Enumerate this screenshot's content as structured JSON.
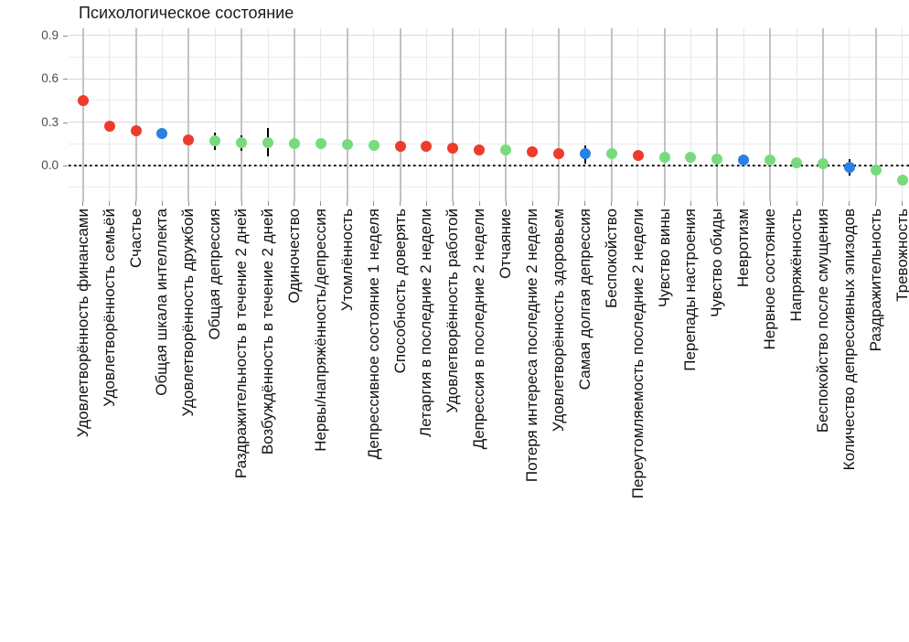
{
  "title": "Психологическое состояние",
  "palette": {
    "red": "#ee3b2c",
    "green": "#77db7d",
    "blue": "#2b80e4",
    "error_bar": "#000000",
    "zero_line": "#000000"
  },
  "chart_data": {
    "type": "scatter",
    "title": "Психологическое состояние",
    "xlabel": "",
    "ylabel": "",
    "legend": "none",
    "grid": "on",
    "zero_reference_line": "dotted black at y=0",
    "x_label_rotation_deg": 90,
    "y_axis": {
      "ticks": [
        0.9,
        0.6,
        0.3,
        0.0
      ],
      "tick_labels": [
        "0.9",
        "0.6",
        "0.3",
        "0.0"
      ],
      "minor_ticks": [
        0.75,
        0.45,
        0.15,
        -0.15
      ],
      "ylim": [
        -0.25,
        0.95
      ]
    },
    "points": [
      {
        "label": "Удовлетворённость финансами",
        "value": 0.45,
        "group": "red"
      },
      {
        "label": "Удовлетворённость семьёй",
        "value": 0.27,
        "group": "red"
      },
      {
        "label": "Счастье",
        "value": 0.24,
        "group": "red"
      },
      {
        "label": "Общая шкала интеллекта",
        "value": 0.22,
        "group": "blue"
      },
      {
        "label": "Удовлетворённость дружбой",
        "value": 0.18,
        "group": "red"
      },
      {
        "label": "Общая депрессия",
        "value": 0.17,
        "group": "green",
        "ci": [
          0.11,
          0.23
        ]
      },
      {
        "label": "Раздражительность в течение 2 дней",
        "value": 0.155,
        "group": "green",
        "ci": [
          0.1,
          0.21
        ]
      },
      {
        "label": "Возбуждённость в течение 2 дней",
        "value": 0.155,
        "group": "green",
        "ci": [
          0.06,
          0.26
        ]
      },
      {
        "label": "Одиночество",
        "value": 0.15,
        "group": "green"
      },
      {
        "label": "Нервы/напряжённость/депрессия",
        "value": 0.15,
        "group": "green"
      },
      {
        "label": "Утомлённость",
        "value": 0.145,
        "group": "green"
      },
      {
        "label": "Депрессивное состояние 1 неделя",
        "value": 0.14,
        "group": "green"
      },
      {
        "label": "Способность доверять",
        "value": 0.135,
        "group": "red"
      },
      {
        "label": "Летаргия в последние 2 недели",
        "value": 0.13,
        "group": "red"
      },
      {
        "label": "Удовлетворённость работой",
        "value": 0.12,
        "group": "red"
      },
      {
        "label": "Депрессия в последние 2 недели",
        "value": 0.105,
        "group": "red"
      },
      {
        "label": "Отчаяние",
        "value": 0.105,
        "group": "green"
      },
      {
        "label": "Потеря интереса последние 2 недели",
        "value": 0.095,
        "group": "red"
      },
      {
        "label": "Удовлетворённость здоровьем",
        "value": 0.08,
        "group": "red"
      },
      {
        "label": "Самая долгая депрессия",
        "value": 0.08,
        "group": "blue",
        "ci": [
          0.01,
          0.14
        ]
      },
      {
        "label": "Беспокойство",
        "value": 0.08,
        "group": "green"
      },
      {
        "label": "Переутомляемость последние 2 недели",
        "value": 0.07,
        "group": "red"
      },
      {
        "label": "Чувство вины",
        "value": 0.06,
        "group": "green"
      },
      {
        "label": "Перепады настроения",
        "value": 0.055,
        "group": "green"
      },
      {
        "label": "Чувство обиды",
        "value": 0.045,
        "group": "green"
      },
      {
        "label": "Невротизм",
        "value": 0.04,
        "group": "blue"
      },
      {
        "label": "Нервное состояние",
        "value": 0.04,
        "group": "green"
      },
      {
        "label": "Напряжённость",
        "value": 0.02,
        "group": "green"
      },
      {
        "label": "Беспокойство после смущения",
        "value": 0.01,
        "group": "green"
      },
      {
        "label": "Количество депрессивных эпизодов",
        "value": -0.01,
        "group": "blue",
        "ci": [
          -0.07,
          0.045
        ]
      },
      {
        "label": "Раздражительность",
        "value": -0.03,
        "group": "green"
      },
      {
        "label": "Тревожность",
        "value": -0.1,
        "group": "green"
      }
    ]
  }
}
